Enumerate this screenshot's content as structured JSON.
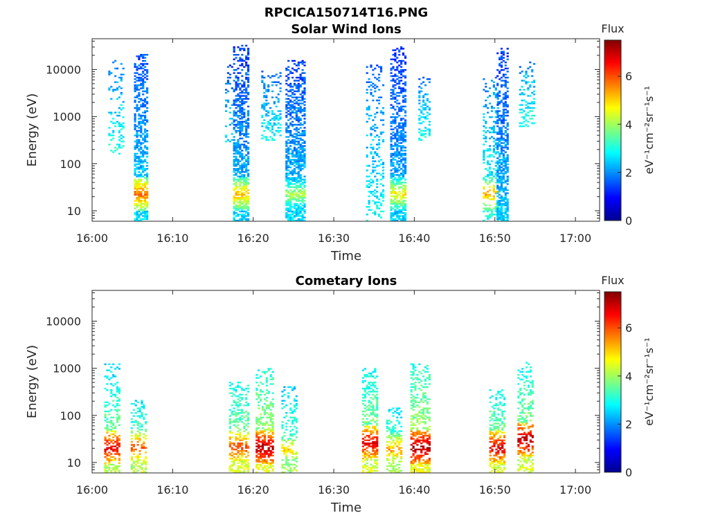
{
  "figure": {
    "title": "RPCICA150714T16.PNG"
  },
  "colormap": {
    "name": "jet",
    "stops": [
      "#00008f",
      "#0000ff",
      "#00ffff",
      "#ffff00",
      "#ff0000",
      "#800000"
    ]
  },
  "chart_data": [
    {
      "type": "heatmap",
      "title": "Solar Wind Ions",
      "xlabel": "Time",
      "ylabel": "Energy (eV)",
      "x_ticks": [
        "16:00",
        "16:10",
        "16:20",
        "16:30",
        "16:40",
        "16:50",
        "17:00"
      ],
      "x_range_minutes": [
        0,
        63
      ],
      "y_scale": "log",
      "y_ticks": [
        "10",
        "100",
        "1000",
        "10000"
      ],
      "y_range": [
        6,
        45000
      ],
      "colorbar": {
        "label": "Flux",
        "units": "eV⁻¹cm⁻²sr⁻¹s⁻¹",
        "ticks": [
          "0",
          "2",
          "4",
          "6"
        ],
        "range": [
          0,
          7.5
        ]
      },
      "bursts": [
        {
          "t_start": 2.0,
          "t_end": 4.0,
          "e_min": 150,
          "e_max": 15000,
          "level": 2.2,
          "density": 0.28
        },
        {
          "t_start": 5.2,
          "t_end": 6.8,
          "e_min": 6,
          "e_max": 20000,
          "level": 1.8,
          "density": 0.75,
          "peak_level": 5.8
        },
        {
          "t_start": 16.5,
          "t_end": 17.4,
          "e_min": 250,
          "e_max": 12000,
          "level": 1.8,
          "density": 0.22
        },
        {
          "t_start": 17.5,
          "t_end": 19.5,
          "e_min": 6,
          "e_max": 32000,
          "level": 1.6,
          "density": 0.78,
          "peak_level": 5.2
        },
        {
          "t_start": 21.0,
          "t_end": 23.5,
          "e_min": 300,
          "e_max": 9000,
          "level": 2.0,
          "density": 0.35
        },
        {
          "t_start": 24.0,
          "t_end": 26.3,
          "e_min": 6,
          "e_max": 15000,
          "level": 1.7,
          "density": 0.78,
          "peak_level": 4.2
        },
        {
          "t_start": 34.0,
          "t_end": 36.2,
          "e_min": 6,
          "e_max": 12000,
          "level": 2.0,
          "density": 0.3
        },
        {
          "t_start": 37.0,
          "t_end": 38.8,
          "e_min": 6,
          "e_max": 30000,
          "level": 1.6,
          "density": 0.78,
          "peak_level": 4.8
        },
        {
          "t_start": 40.5,
          "t_end": 42.0,
          "e_min": 300,
          "e_max": 7000,
          "level": 2.1,
          "density": 0.4
        },
        {
          "t_start": 48.5,
          "t_end": 50.5,
          "e_min": 6,
          "e_max": 8000,
          "level": 2.2,
          "density": 0.4,
          "peak_level": 5.4
        },
        {
          "t_start": 50.2,
          "t_end": 51.6,
          "e_min": 6,
          "e_max": 28000,
          "level": 1.6,
          "density": 0.75
        },
        {
          "t_start": 53.0,
          "t_end": 55.0,
          "e_min": 600,
          "e_max": 15000,
          "level": 2.2,
          "density": 0.35
        }
      ]
    },
    {
      "type": "heatmap",
      "title": "Cometary Ions",
      "xlabel": "Time",
      "ylabel": "Energy (eV)",
      "x_ticks": [
        "16:00",
        "16:10",
        "16:20",
        "16:30",
        "16:40",
        "16:50",
        "17:00"
      ],
      "x_range_minutes": [
        0,
        63
      ],
      "y_scale": "log",
      "y_ticks": [
        "10",
        "100",
        "1000",
        "10000"
      ],
      "y_range": [
        6,
        45000
      ],
      "colorbar": {
        "label": "Flux",
        "units": "eV⁻¹cm⁻²sr⁻¹s⁻¹",
        "ticks": [
          "0",
          "2",
          "4",
          "6"
        ],
        "range": [
          0,
          7.5
        ]
      },
      "bursts": [
        {
          "t_start": 1.5,
          "t_end": 3.5,
          "e_min": 6,
          "e_max": 1200,
          "level": 3.0,
          "density": 0.55,
          "peak_level": 6.8,
          "peak_e": 20
        },
        {
          "t_start": 4.8,
          "t_end": 6.8,
          "e_min": 6,
          "e_max": 200,
          "level": 3.0,
          "density": 0.55,
          "peak_level": 6.0,
          "peak_e": 20
        },
        {
          "t_start": 17.0,
          "t_end": 19.3,
          "e_min": 6,
          "e_max": 500,
          "level": 3.2,
          "density": 0.55,
          "peak_level": 6.2,
          "peak_e": 20
        },
        {
          "t_start": 20.3,
          "t_end": 22.5,
          "e_min": 6,
          "e_max": 1000,
          "level": 3.4,
          "density": 0.6,
          "peak_level": 7.2,
          "peak_e": 20
        },
        {
          "t_start": 23.5,
          "t_end": 25.5,
          "e_min": 6,
          "e_max": 400,
          "level": 2.8,
          "density": 0.45,
          "peak_level": 5.0,
          "peak_e": 18
        },
        {
          "t_start": 33.5,
          "t_end": 35.5,
          "e_min": 6,
          "e_max": 1000,
          "level": 3.2,
          "density": 0.6,
          "peak_level": 6.8,
          "peak_e": 25
        },
        {
          "t_start": 36.5,
          "t_end": 38.5,
          "e_min": 6,
          "e_max": 150,
          "level": 3.0,
          "density": 0.5,
          "peak_level": 5.5,
          "peak_e": 18
        },
        {
          "t_start": 39.5,
          "t_end": 42.0,
          "e_min": 6,
          "e_max": 1200,
          "level": 3.4,
          "density": 0.62,
          "peak_level": 7.3,
          "peak_e": 20
        },
        {
          "t_start": 49.3,
          "t_end": 51.3,
          "e_min": 6,
          "e_max": 350,
          "level": 3.2,
          "density": 0.6,
          "peak_level": 6.8,
          "peak_e": 20
        },
        {
          "t_start": 52.8,
          "t_end": 54.8,
          "e_min": 6,
          "e_max": 1300,
          "level": 3.2,
          "density": 0.55,
          "peak_level": 7.2,
          "peak_e": 30
        }
      ]
    }
  ]
}
